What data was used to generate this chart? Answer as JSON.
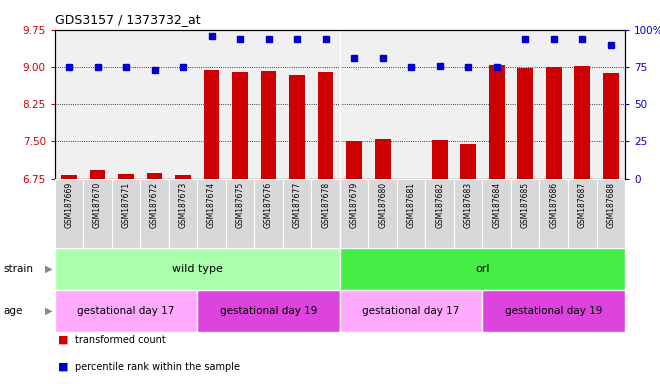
{
  "title": "GDS3157 / 1373732_at",
  "samples": [
    "GSM187669",
    "GSM187670",
    "GSM187671",
    "GSM187672",
    "GSM187673",
    "GSM187674",
    "GSM187675",
    "GSM187676",
    "GSM187677",
    "GSM187678",
    "GSM187679",
    "GSM187680",
    "GSM187681",
    "GSM187682",
    "GSM187683",
    "GSM187684",
    "GSM187685",
    "GSM187686",
    "GSM187687",
    "GSM187688"
  ],
  "bar_values": [
    6.83,
    6.93,
    6.85,
    6.87,
    6.82,
    8.95,
    8.9,
    8.92,
    8.85,
    8.9,
    7.5,
    7.55,
    6.68,
    7.53,
    7.45,
    9.05,
    8.98,
    9.0,
    9.02,
    8.88
  ],
  "percentile_values": [
    75,
    75,
    75,
    73,
    75,
    96,
    94,
    94,
    94,
    94,
    81,
    81,
    75,
    76,
    75,
    75,
    94,
    94,
    94,
    90
  ],
  "ylim_left": [
    6.75,
    9.75
  ],
  "ylim_right": [
    0,
    100
  ],
  "yticks_left": [
    6.75,
    7.5,
    8.25,
    9.0,
    9.75
  ],
  "yticks_right": [
    0,
    25,
    50,
    75,
    100
  ],
  "bar_color": "#cc0000",
  "dot_color": "#0000cc",
  "plot_bg": "#f0f0f0",
  "strain_groups": [
    {
      "label": "wild type",
      "start": 0,
      "end": 9,
      "color": "#aaffaa"
    },
    {
      "label": "orl",
      "start": 10,
      "end": 19,
      "color": "#44ee44"
    }
  ],
  "age_groups": [
    {
      "label": "gestational day 17",
      "start": 0,
      "end": 4,
      "color": "#ffaaff"
    },
    {
      "label": "gestational day 19",
      "start": 5,
      "end": 9,
      "color": "#dd44dd"
    },
    {
      "label": "gestational day 17",
      "start": 10,
      "end": 14,
      "color": "#ffaaff"
    },
    {
      "label": "gestational day 19",
      "start": 15,
      "end": 19,
      "color": "#dd44dd"
    }
  ],
  "legend_items": [
    {
      "label": "transformed count",
      "color": "#cc0000"
    },
    {
      "label": "percentile rank within the sample",
      "color": "#0000cc"
    }
  ],
  "strain_label": "strain",
  "age_label": "age",
  "xtick_bg": "#d8d8d8"
}
